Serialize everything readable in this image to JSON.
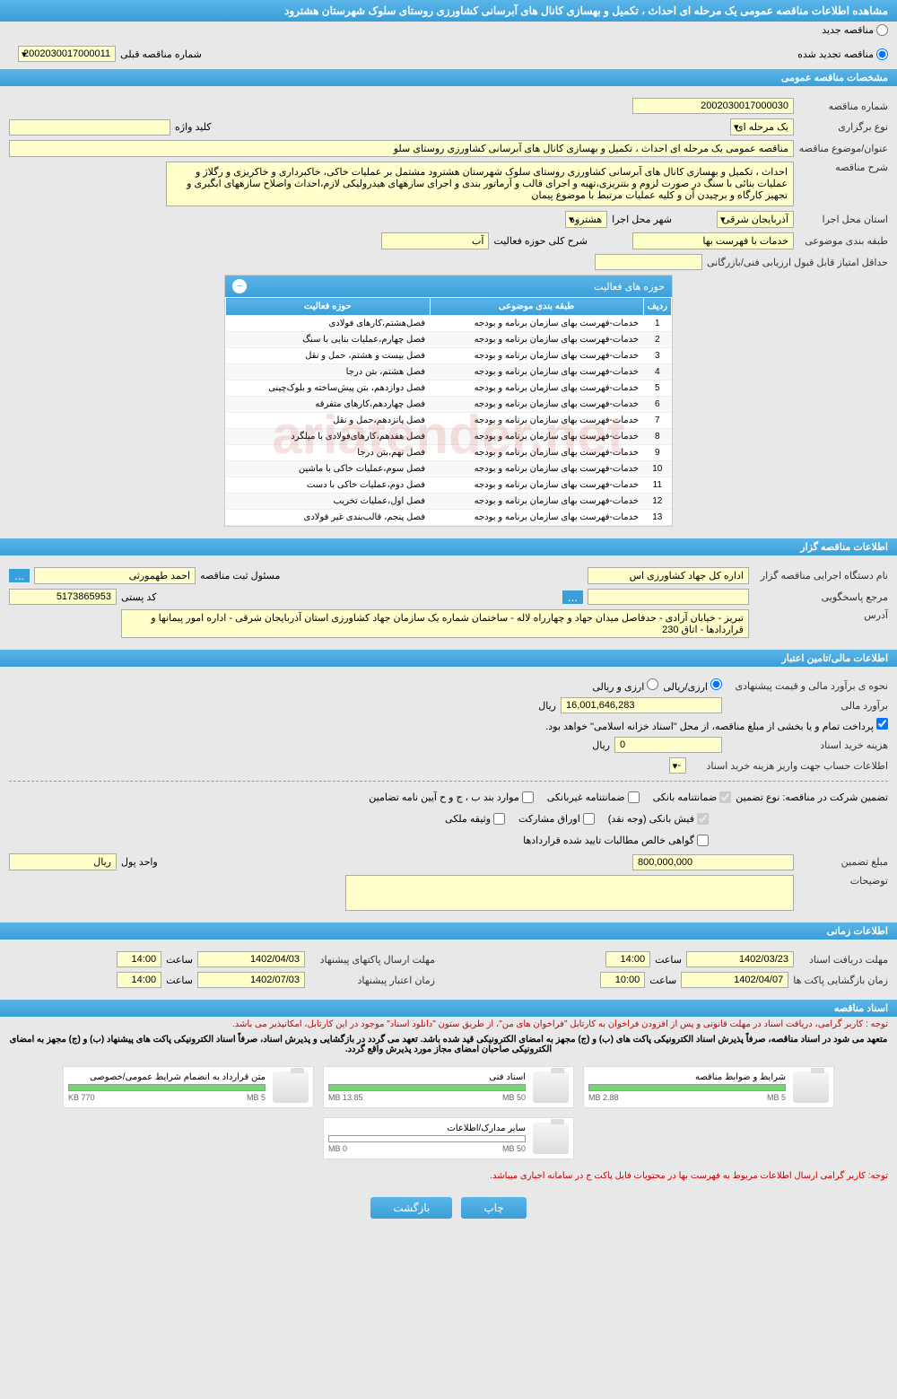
{
  "header_title": "مشاهده اطلاعات مناقصه عمومی یک مرحله ای احداث ، تکمیل و بهسازی کانال های آبرسانی کشاورزی روستای سلوک شهرستان هشترود",
  "radio_new": "مناقصه جدید",
  "radio_renewed": "مناقصه تجدید شده",
  "prev_tender_label": "شماره مناقصه قبلی",
  "prev_tender_value": "2002030017000011",
  "sections": {
    "general": "مشخصات مناقصه عمومی",
    "holder": "اطلاعات مناقصه گزار",
    "financial": "اطلاعات مالی/تامین اعتبار",
    "timing": "اطلاعات زمانی",
    "docs": "اسناد مناقصه"
  },
  "general": {
    "tender_no_label": "شماره مناقصه",
    "tender_no": "2002030017000030",
    "type_label": "نوع برگزاری",
    "type": "یک مرحله ای",
    "keyword_label": "کلید واژه",
    "keyword": "",
    "subject_label": "عنوان/موضوع مناقصه",
    "subject": "مناقصه عمومی یک مرحله ای احداث ، تکمیل و بهسازی کانال های آبرسانی کشاورزی روستای سلو",
    "desc_label": "شرح مناقصه",
    "desc": "احداث ، تکمیل و بهسازی کانال های آبرسانی کشاورزی روستای سلوک شهرستان هشترود مشتمل بر عملیات خاکی، خاکبرداری و خاکریزی و رگلاژ و عملیات بنائی با سنگ در صورت لزوم و بتنریزی،تهیه و اجرای قالب و آرماتور بندی و اجرای سازههای هیدرولیکی لازم،احداث واصلاح سازههای ابگیری و تجهیز کارگاه و برچیدن آن و کلیه عملیات مرتبط با موضوع پیمان",
    "province_label": "استان محل اجرا",
    "province": "آذربایجان شرقی",
    "city_label": "شهر محل اجرا",
    "city": "هشترود",
    "category_label": "طبقه بندی موضوعی",
    "category": "خدمات با فهرست بها",
    "scope_label": "شرح کلی حوزه فعالیت",
    "scope": "آب",
    "min_score_label": "حداقل امتیاز قابل قبول ارزیابی فنی/بازرگانی",
    "min_score": ""
  },
  "activities": {
    "title": "حوزه های فعالیت",
    "col_row": "ردیف",
    "col_category": "طبقه بندی موضوعی",
    "col_scope": "حوزه فعالیت",
    "rows": [
      {
        "n": "1",
        "cat": "خدمات-فهرست بهای سازمان برنامه و بودجه",
        "scope": "فصل‌هشتم،کارهای فولادی"
      },
      {
        "n": "2",
        "cat": "خدمات-فهرست بهای سازمان برنامه و بودجه",
        "scope": "فصل چهارم،عملیات بنایی با سنگ"
      },
      {
        "n": "3",
        "cat": "خدمات-فهرست بهای سازمان برنامه و بودجه",
        "scope": "فصل بیست و هشتم، حمل و نقل"
      },
      {
        "n": "4",
        "cat": "خدمات-فهرست بهای سازمان برنامه و بودجه",
        "scope": "فصل هشتم، بتن درجا"
      },
      {
        "n": "5",
        "cat": "خدمات-فهرست بهای سازمان برنامه و بودجه",
        "scope": "فصل دوازدهم، بتن پیش‌ساخته و بلوک‌چینی"
      },
      {
        "n": "6",
        "cat": "خدمات-فهرست بهای سازمان برنامه و بودجه",
        "scope": "فصل چهاردهم،کارهای متفرقه"
      },
      {
        "n": "7",
        "cat": "خدمات-فهرست بهای سازمان برنامه و بودجه",
        "scope": "فصل پانزدهم،حمل و نقل"
      },
      {
        "n": "8",
        "cat": "خدمات-فهرست بهای سازمان برنامه و بودجه",
        "scope": "فصل هفدهم،کارهای‌فولادی با میلگرد"
      },
      {
        "n": "9",
        "cat": "خدمات-فهرست بهای سازمان برنامه و بودجه",
        "scope": "فصل نهم،بتن درجا"
      },
      {
        "n": "10",
        "cat": "خدمات-فهرست بهای سازمان برنامه و بودجه",
        "scope": "فصل سوم،عملیات خاکی با ماشین"
      },
      {
        "n": "11",
        "cat": "خدمات-فهرست بهای سازمان برنامه و بودجه",
        "scope": "فصل دوم،عملیات خاکی با دست"
      },
      {
        "n": "12",
        "cat": "خدمات-فهرست بهای سازمان برنامه و بودجه",
        "scope": "فصل اول،عملیات تخریب"
      },
      {
        "n": "13",
        "cat": "خدمات-فهرست بهای سازمان برنامه و بودجه",
        "scope": "فصل پنجم، قالب‌بندی غیر فولادی"
      }
    ]
  },
  "holder": {
    "org_label": "نام دستگاه اجرایی مناقصه گزار",
    "org": "اداره کل جهاد کشاورزی اس",
    "registrar_label": "مسئول ثبت مناقصه",
    "registrar": "احمد طهمورثی",
    "responder_label": "مرجع پاسخگویی",
    "responder": "",
    "postal_label": "کد پستی",
    "postal": "5173865953",
    "address_label": "آدرس",
    "address": "تبریز - خیابان آزادی - حدفاصل میدان جهاد و چهارراه لاله - ساختمان شماره یک سازمان جهاد کشاورزی استان آذربایجان شرقی - اداره امور پیمانها و قراردادها - اتاق 230",
    "dots": "..."
  },
  "financial": {
    "method_label": "نحوه ی برآورد مالی و قیمت پیشنهادی",
    "opt_rial": "ارزی/ریالی",
    "opt_currency": "ارزی و ریالی",
    "estimate_label": "برآورد مالی",
    "estimate": "16,001,646,283",
    "unit_rial": "ریال",
    "payment_note": "پرداخت تمام و یا بخشی از مبلغ مناقصه، از محل \"اسناد خزانه اسلامی\" خواهد بود.",
    "doc_cost_label": "هزینه خرید اسناد",
    "doc_cost": "0",
    "account_label": "اطلاعات حساب جهت واریز هزینه خرید اسناد",
    "account": "--",
    "guarantee_label": "تضمین شرکت در مناقصه:   نوع تضمین",
    "chk_bank_guarantee": "ضمانتنامه بانکی",
    "chk_nonbank_guarantee": "ضمانتنامه غیربانکی",
    "chk_items": "موارد بند ب ، ج و ح آیین نامه تضامین",
    "chk_bank_receipt": "فیش بانکی (وجه نقد)",
    "chk_bonds": "اوراق مشارکت",
    "chk_property": "وثیقه ملکی",
    "chk_receivables": "گواهی خالص مطالبات تایید شده قراردادها",
    "guarantee_amount_label": "مبلغ تضمین",
    "guarantee_amount": "800,000,000",
    "currency_unit_label": "واحد پول",
    "currency_unit": "ریال",
    "notes_label": "توضیحات",
    "notes": ""
  },
  "timing": {
    "doc_deadline_label": "مهلت دریافت اسناد",
    "doc_deadline_date": "1402/03/23",
    "doc_deadline_time": "14:00",
    "time_label": "ساعت",
    "proposal_deadline_label": "مهلت ارسال پاکتهای پیشنهاد",
    "proposal_deadline_date": "1402/04/03",
    "proposal_deadline_time": "14:00",
    "opening_label": "زمان بازگشایی پاکت ها",
    "opening_date": "1402/04/07",
    "opening_time": "10:00",
    "validity_label": "زمان اعتبار پیشنهاد",
    "validity_date": "1402/07/03",
    "validity_time": "14:00"
  },
  "docs": {
    "notice1": "توجه : کاربر گرامی، دریافت اسناد در مهلت قانونی و پس از افزودن فراخوان به کارتابل \"فراخوان های من\"، از طریق ستون \"دانلود اسناد\" موجود در این کارتابل، امکانپذیر می باشد.",
    "notice2": "متعهد می شود در اسناد مناقصه، صرفاً پذیرش اسناد الکترونیکی پاکت های (ب) و (ج) مجهز به امضای الکترونیکی قید شده باشد. تعهد می گردد در بازگشایی و پذیرش اسناد، صرفاً اسناد الکترونیکی پاکت های پیشنهاد (ب) و (ج) مجهز به امضای الکترونیکی صاحبان امضای مجاز مورد پذیرش واقع گردد.",
    "notice3": "توجه: کاربر گرامی ارسال اطلاعات مربوط به فهرست بها در محتویات فایل پاکت ج در سامانه اجباری میباشد.",
    "items": [
      {
        "title": "شرایط و ضوابط مناقصه",
        "used": "2.88 MB",
        "total": "5 MB",
        "pct": 58
      },
      {
        "title": "اسناد فنی",
        "used": "13.85 MB",
        "total": "50 MB",
        "pct": 28
      },
      {
        "title": "متن قرارداد به انضمام شرایط عمومی/خصوصی",
        "used": "770 KB",
        "total": "5 MB",
        "pct": 15
      },
      {
        "title": "سایر مدارک/اطلاعات",
        "used": "0 MB",
        "total": "50 MB",
        "pct": 0
      }
    ]
  },
  "footer": {
    "print": "چاپ",
    "back": "بازگشت"
  },
  "watermark": "ariatender.net"
}
